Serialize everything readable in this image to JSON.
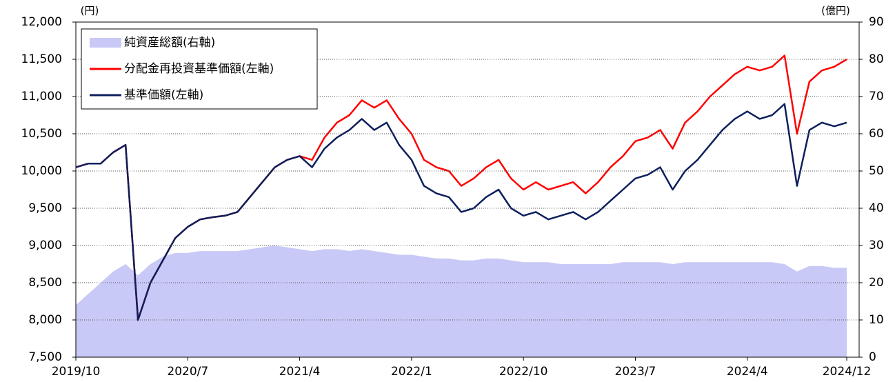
{
  "chart_data": {
    "type": "line",
    "y_label": "(円)",
    "y2_label": "(億円)",
    "x": [
      "2019/10",
      "2019/11",
      "2019/12",
      "2020/1",
      "2020/2",
      "2020/3",
      "2020/4",
      "2020/5",
      "2020/6",
      "2020/7",
      "2020/8",
      "2020/9",
      "2020/10",
      "2020/11",
      "2020/12",
      "2021/1",
      "2021/2",
      "2021/3",
      "2021/4",
      "2021/5",
      "2021/6",
      "2021/7",
      "2021/8",
      "2021/9",
      "2021/10",
      "2021/11",
      "2021/12",
      "2022/1",
      "2022/2",
      "2022/3",
      "2022/4",
      "2022/5",
      "2022/6",
      "2022/7",
      "2022/8",
      "2022/9",
      "2022/10",
      "2022/11",
      "2022/12",
      "2023/1",
      "2023/2",
      "2023/3",
      "2023/4",
      "2023/5",
      "2023/6",
      "2023/7",
      "2023/8",
      "2023/9",
      "2023/10",
      "2023/11",
      "2023/12",
      "2024/1",
      "2024/2",
      "2024/3",
      "2024/4",
      "2024/5",
      "2024/6",
      "2024/7",
      "2024/8",
      "2024/9",
      "2024/10",
      "2024/11",
      "2024/12"
    ],
    "xlim": [
      "2019/10",
      "2024/12"
    ],
    "xticks": [
      "2019/10",
      "2020/7",
      "2021/4",
      "2022/1",
      "2022/10",
      "2023/7",
      "2024/4",
      "2024/12"
    ],
    "ylim": [
      7500,
      12000
    ],
    "yticks": [
      {
        "value": 7500,
        "label": "7,500"
      },
      {
        "value": 8000,
        "label": "8,000"
      },
      {
        "value": 8500,
        "label": "8,500"
      },
      {
        "value": 9000,
        "label": "9,000"
      },
      {
        "value": 9500,
        "label": "9,500"
      },
      {
        "value": 10000,
        "label": "10,000"
      },
      {
        "value": 10500,
        "label": "10,500"
      },
      {
        "value": 11000,
        "label": "11,000"
      },
      {
        "value": 11500,
        "label": "11,500"
      },
      {
        "value": 12000,
        "label": "12,000"
      }
    ],
    "y2lim": [
      0,
      90
    ],
    "y2ticks": [
      0,
      10,
      20,
      30,
      40,
      50,
      60,
      70,
      80,
      90
    ],
    "grid": true,
    "legend": "upper left",
    "series": [
      {
        "name": "純資産総額(右軸)",
        "type": "area",
        "axis": "y2",
        "color": "#c9c9f7",
        "values": [
          14,
          17,
          20,
          23,
          25,
          22,
          25,
          27,
          28,
          28,
          28.5,
          28.5,
          28.5,
          28.5,
          29,
          29.5,
          30,
          29.5,
          29,
          28.5,
          29,
          29,
          28.5,
          29,
          28.5,
          28,
          27.5,
          27.5,
          27,
          26.5,
          26.5,
          26,
          26,
          26.5,
          26.5,
          26,
          25.5,
          25.5,
          25.5,
          25,
          25,
          25,
          25,
          25,
          25.5,
          25.5,
          25.5,
          25.5,
          25,
          25.5,
          25.5,
          25.5,
          25.5,
          25.5,
          25.5,
          25.5,
          25.5,
          25,
          23,
          24.5,
          24.5,
          24,
          24
        ]
      },
      {
        "name": "分配金再投資基準価額(左軸)",
        "type": "line",
        "color": "#ff0000",
        "values": [
          10050,
          10100,
          10100,
          10250,
          10350,
          8000,
          8500,
          8800,
          9100,
          9250,
          9350,
          9380,
          9400,
          9450,
          9650,
          9850,
          10050,
          10150,
          10200,
          10150,
          10450,
          10650,
          10750,
          10950,
          10850,
          10950,
          10700,
          10500,
          10150,
          10050,
          10000,
          9800,
          9900,
          10050,
          10150,
          9900,
          9750,
          9850,
          9750,
          9800,
          9850,
          9700,
          9850,
          10050,
          10200,
          10400,
          10450,
          10550,
          10300,
          10650,
          10800,
          11000,
          11150,
          11300,
          11400,
          11350,
          11400,
          11550,
          10500,
          11200,
          11350,
          11400,
          11500
        ]
      },
      {
        "name": "基準価額(左軸)",
        "type": "line",
        "color": "#0d1f5c",
        "values": [
          10050,
          10100,
          10100,
          10250,
          10350,
          8000,
          8500,
          8800,
          9100,
          9250,
          9350,
          9380,
          9400,
          9450,
          9650,
          9850,
          10050,
          10150,
          10200,
          10050,
          10300,
          10450,
          10550,
          10700,
          10550,
          10650,
          10350,
          10150,
          9800,
          9700,
          9650,
          9450,
          9500,
          9650,
          9750,
          9500,
          9400,
          9450,
          9350,
          9400,
          9450,
          9350,
          9450,
          9600,
          9750,
          9900,
          9950,
          10050,
          9750,
          10000,
          10150,
          10350,
          10550,
          10700,
          10800,
          10700,
          10750,
          10900,
          9800,
          10550,
          10650,
          10600,
          10650
        ]
      }
    ]
  }
}
